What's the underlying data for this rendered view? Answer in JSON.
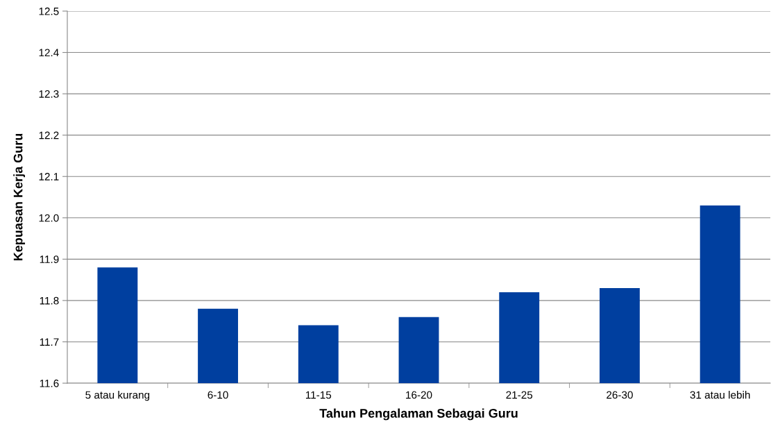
{
  "chart_data": {
    "type": "bar",
    "xlabel": "Tahun Pengalaman Sebagai Guru",
    "ylabel": "Kepuasan Kerja Guru",
    "categories": [
      "5 atau kurang",
      "6-10",
      "11-15",
      "16-20",
      "21-25",
      "26-30",
      "31 atau lebih"
    ],
    "values": [
      11.88,
      11.78,
      11.74,
      11.76,
      11.82,
      11.83,
      12.03
    ],
    "color": "#003f9f",
    "ylim": [
      11.6,
      12.5
    ],
    "yticks": [
      {
        "value": 11.6,
        "label": "11.6"
      },
      {
        "value": 11.7,
        "label": "11.7"
      },
      {
        "value": 11.8,
        "label": "11.8"
      },
      {
        "value": 11.9,
        "label": "11.9"
      },
      {
        "value": 12.0,
        "label": "12.0"
      },
      {
        "value": 12.1,
        "label": "12.1"
      },
      {
        "value": 12.2,
        "label": "12.2"
      },
      {
        "value": 12.3,
        "label": "12.3"
      },
      {
        "value": 12.4,
        "label": "12.4"
      },
      {
        "value": 12.5,
        "label": "12.5"
      }
    ],
    "grid": "y",
    "legend": false
  }
}
